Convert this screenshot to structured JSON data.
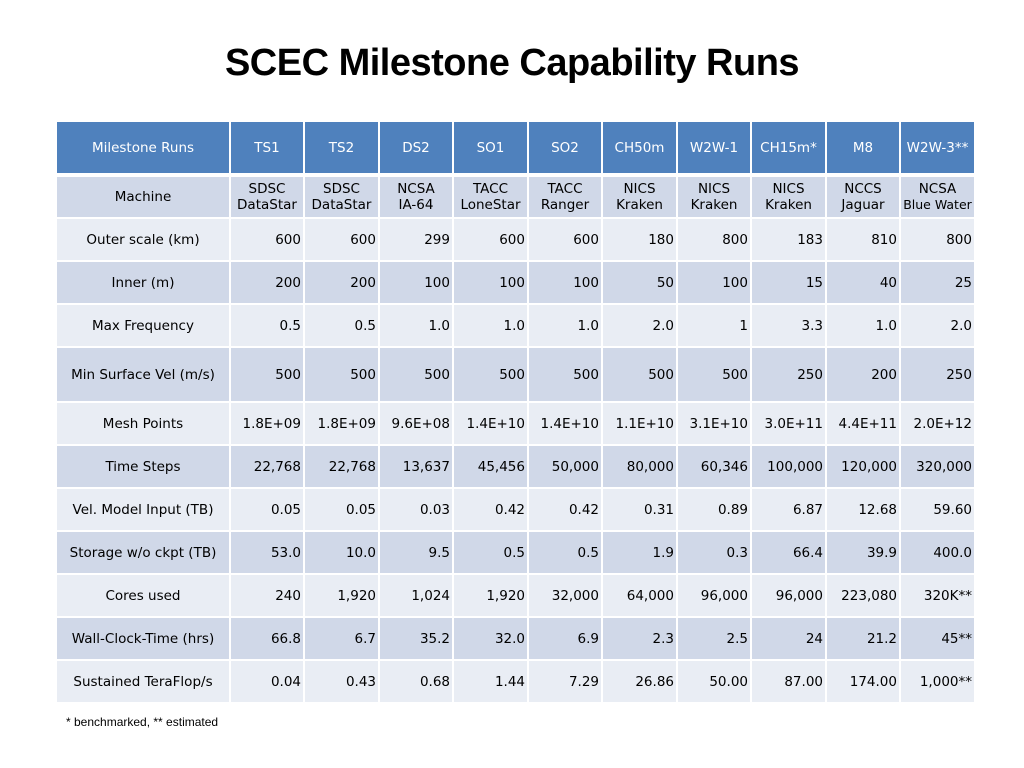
{
  "title": "SCEC Milestone Capability Runs",
  "table": {
    "corner": "Milestone Runs",
    "columns": [
      "TS1",
      "TS2",
      "DS2",
      "SO1",
      "SO2",
      "CH50m",
      "W2W-1",
      "CH15m*",
      "M8",
      "W2W-3**"
    ],
    "machine": {
      "label": "Machine",
      "values": [
        [
          "SDSC",
          "DataStar"
        ],
        [
          "SDSC",
          "DataStar"
        ],
        [
          "NCSA",
          "IA-64"
        ],
        [
          "TACC",
          "LoneStar"
        ],
        [
          "TACC",
          "Ranger"
        ],
        [
          "NICS",
          "Kraken"
        ],
        [
          "NICS",
          "Kraken"
        ],
        [
          "NICS",
          "Kraken"
        ],
        [
          "NCCS",
          "Jaguar"
        ],
        [
          "NCSA",
          "Blue Water"
        ]
      ]
    },
    "rows": [
      {
        "label": "Outer scale (km)",
        "values": [
          "600",
          "600",
          "299",
          "600",
          "600",
          "180",
          "800",
          "183",
          "810",
          "800"
        ]
      },
      {
        "label": "Inner (m)",
        "values": [
          "200",
          "200",
          "100",
          "100",
          "100",
          "50",
          "100",
          "15",
          "40",
          "25"
        ]
      },
      {
        "label": "Max Frequency",
        "values": [
          "0.5",
          "0.5",
          "1.0",
          "1.0",
          "1.0",
          "2.0",
          "1",
          "3.3",
          "1.0",
          "2.0"
        ]
      },
      {
        "label": "Min Surface Vel (m/s)",
        "values": [
          "500",
          "500",
          "500",
          "500",
          "500",
          "500",
          "500",
          "250",
          "200",
          "250"
        ]
      },
      {
        "label": "Mesh Points",
        "values": [
          "1.8E+09",
          "1.8E+09",
          "9.6E+08",
          "1.4E+10",
          "1.4E+10",
          "1.1E+10",
          "3.1E+10",
          "3.0E+11",
          "4.4E+11",
          "2.0E+12"
        ]
      },
      {
        "label": "Time Steps",
        "values": [
          "22,768",
          "22,768",
          "13,637",
          "45,456",
          "50,000",
          "80,000",
          "60,346",
          "100,000",
          "120,000",
          "320,000"
        ]
      },
      {
        "label": "Vel. Model Input (TB)",
        "values": [
          "0.05",
          "0.05",
          "0.03",
          "0.42",
          "0.42",
          "0.31",
          "0.89",
          "6.87",
          "12.68",
          "59.60"
        ]
      },
      {
        "label": "Storage w/o ckpt (TB)",
        "values": [
          "53.0",
          "10.0",
          "9.5",
          "0.5",
          "0.5",
          "1.9",
          "0.3",
          "66.4",
          "39.9",
          "400.0"
        ]
      },
      {
        "label": "Cores used",
        "values": [
          "240",
          "1,920",
          "1,024",
          "1,920",
          "32,000",
          "64,000",
          "96,000",
          "96,000",
          "223,080",
          "320K**"
        ]
      },
      {
        "label": "Wall-Clock-Time (hrs)",
        "values": [
          "66.8",
          "6.7",
          "35.2",
          "32.0",
          "6.9",
          "2.3",
          "2.5",
          "24",
          "21.2",
          "45**"
        ]
      },
      {
        "label": "Sustained TeraFlop/s",
        "values": [
          "0.04",
          "0.43",
          "0.68",
          "1.44",
          "7.29",
          "26.86",
          "50.00",
          "87.00",
          "174.00",
          "1,000**"
        ]
      }
    ]
  },
  "footnote": "* benchmarked, ** estimated",
  "colors": {
    "header_bg": "#4f81bd",
    "row_dark": "#d0d8e8",
    "row_light": "#e9edf4"
  }
}
